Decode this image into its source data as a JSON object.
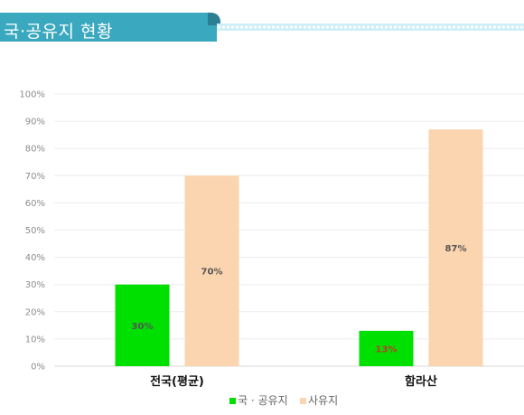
{
  "header": {
    "title": "국·공유지 현황"
  },
  "chart_data": {
    "type": "bar",
    "categories": [
      "전국(평균)",
      "함라산"
    ],
    "series": [
      {
        "name": "국 · 공유지",
        "values": [
          30,
          13
        ],
        "color": "#00e000",
        "labels": [
          "30%",
          "13%"
        ],
        "label_colors": [
          "#555555",
          "#c0392b"
        ]
      },
      {
        "name": "사유지",
        "values": [
          70,
          87
        ],
        "color": "#fbd5b0",
        "labels": [
          "70%",
          "87%"
        ],
        "label_colors": [
          "#555555",
          "#555555"
        ]
      }
    ],
    "yticks": [
      "0%",
      "10%",
      "20%",
      "30%",
      "40%",
      "50%",
      "60%",
      "70%",
      "80%",
      "90%",
      "100%"
    ],
    "ylim": [
      0,
      100
    ],
    "grid": true,
    "legend": "bottom"
  }
}
